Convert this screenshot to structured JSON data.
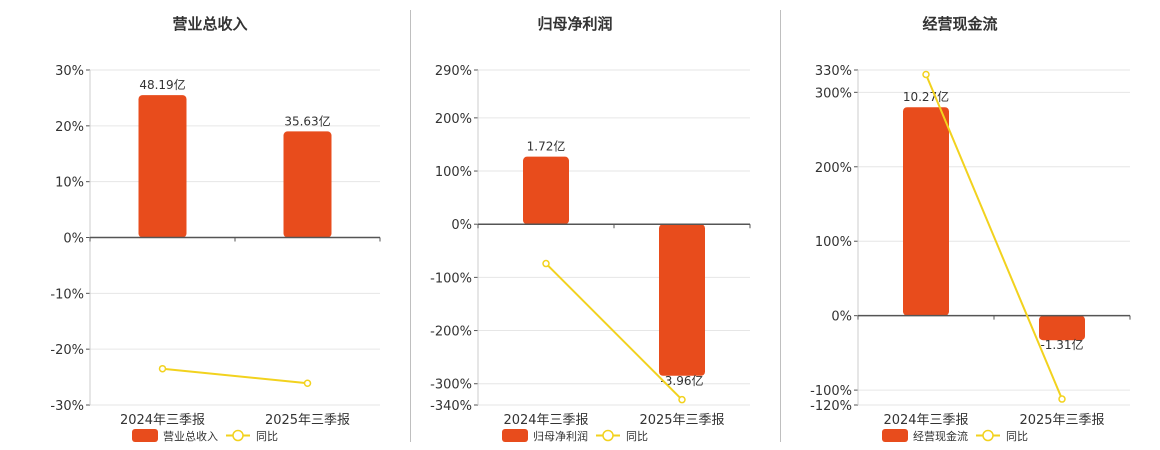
{
  "colors": {
    "bar": "#e84c1c",
    "line": "#f2d21e",
    "axis": "#555555",
    "grid": "#e6e6e6",
    "text": "#333333"
  },
  "legend_line_label": "同比",
  "chart_data": [
    {
      "type": "bar",
      "title": "营业总收入",
      "categories": [
        "2024年三季报",
        "2025年三季报"
      ],
      "series": [
        {
          "name": "营业总收入",
          "type": "bar",
          "values": [
            48.19,
            35.63
          ],
          "data_labels": [
            "48.19亿",
            "35.63亿"
          ],
          "bar_percent_scale": [
            25.5,
            19.0
          ]
        },
        {
          "name": "同比",
          "type": "line",
          "values": [
            -23.5,
            -26.1
          ]
        }
      ],
      "ylim": [
        -30,
        30
      ],
      "yticks": [
        30,
        20,
        10,
        0,
        -10,
        -20,
        -30
      ],
      "ytick_labels": [
        "30%",
        "20%",
        "10%",
        "0%",
        "-10%",
        "-20%",
        "-30%"
      ],
      "legend": "bottom",
      "grid": true
    },
    {
      "type": "bar",
      "title": "归母净利润",
      "categories": [
        "2024年三季报",
        "2025年三季报"
      ],
      "series": [
        {
          "name": "归母净利润",
          "type": "bar",
          "values": [
            1.72,
            -3.96
          ],
          "data_labels": [
            "1.72亿",
            "-3.96亿"
          ],
          "bar_percent_scale": [
            127,
            -285
          ]
        },
        {
          "name": "同比",
          "type": "line",
          "values": [
            -74,
            -330
          ]
        }
      ],
      "ylim": [
        -340,
        290
      ],
      "yticks": [
        290,
        200,
        100,
        0,
        -100,
        -200,
        -300,
        -340
      ],
      "ytick_labels": [
        "290%",
        "200%",
        "100%",
        "0%",
        "-100%",
        "-200%",
        "-300%",
        "-340%"
      ],
      "legend": "bottom",
      "grid": true
    },
    {
      "type": "bar",
      "title": "经营现金流",
      "categories": [
        "2024年三季报",
        "2025年三季报"
      ],
      "series": [
        {
          "name": "经营现金流",
          "type": "bar",
          "values": [
            10.27,
            -1.31
          ],
          "data_labels": [
            "10.27亿",
            "-1.31亿"
          ],
          "bar_percent_scale": [
            280,
            -33
          ]
        },
        {
          "name": "同比",
          "type": "line",
          "values": [
            324,
            -112
          ]
        }
      ],
      "ylim": [
        -120,
        330
      ],
      "yticks": [
        330,
        300,
        200,
        100,
        0,
        -100,
        -120
      ],
      "ytick_labels": [
        "330%",
        "300%",
        "200%",
        "100%",
        "0%",
        "-100%",
        "-120%"
      ],
      "legend": "bottom",
      "grid": true
    }
  ]
}
